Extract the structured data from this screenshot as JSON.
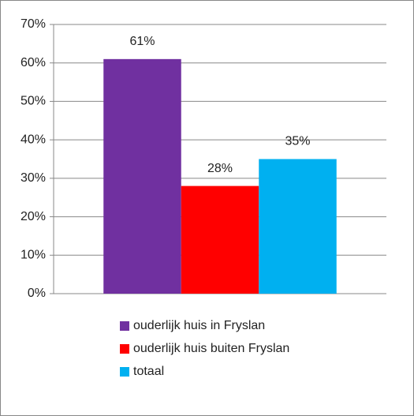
{
  "chart_data": {
    "type": "bar",
    "categories": [
      null
    ],
    "series": [
      {
        "name": "ouderlijk huis in Fryslan",
        "color": "#7030a0",
        "values": [
          61
        ],
        "value_labels": [
          "61%"
        ]
      },
      {
        "name": "ouderlijk huis buiten Fryslan",
        "color": "#ff0000",
        "values": [
          28
        ],
        "value_labels": [
          "28%"
        ]
      },
      {
        "name": "totaal",
        "color": "#00b0f0",
        "values": [
          35
        ],
        "value_labels": [
          "35%"
        ]
      }
    ],
    "ylim": [
      0,
      70
    ],
    "yticks": [
      {
        "value": 0,
        "label": "0%"
      },
      {
        "value": 10,
        "label": "10%"
      },
      {
        "value": 20,
        "label": "20%"
      },
      {
        "value": 30,
        "label": "30%"
      },
      {
        "value": 40,
        "label": "40%"
      },
      {
        "value": 50,
        "label": "50%"
      },
      {
        "value": 60,
        "label": "60%"
      },
      {
        "value": 70,
        "label": "70%"
      }
    ],
    "grid": true,
    "legend": "bottom"
  }
}
